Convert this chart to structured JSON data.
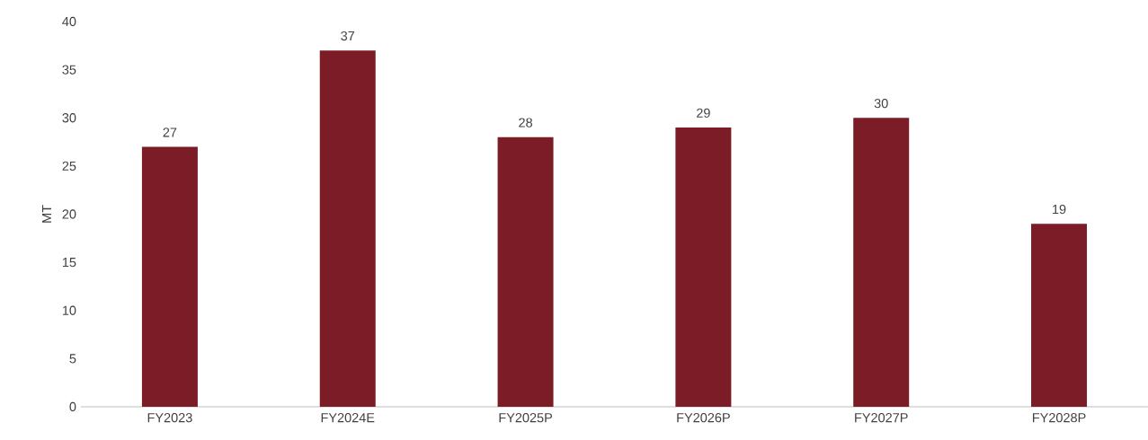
{
  "chart_data": {
    "type": "bar",
    "ylabel": "MT",
    "categories": [
      "FY2023",
      "FY2024E",
      "FY2025P",
      "FY2026P",
      "FY2027P",
      "FY2028P"
    ],
    "values": [
      27,
      37,
      28,
      29,
      30,
      19
    ],
    "color": "#7b1c27",
    "ylim": [
      0,
      40
    ],
    "yticks": [
      0,
      5,
      10,
      15,
      20,
      25,
      30,
      35,
      40
    ],
    "data_labels": true
  }
}
